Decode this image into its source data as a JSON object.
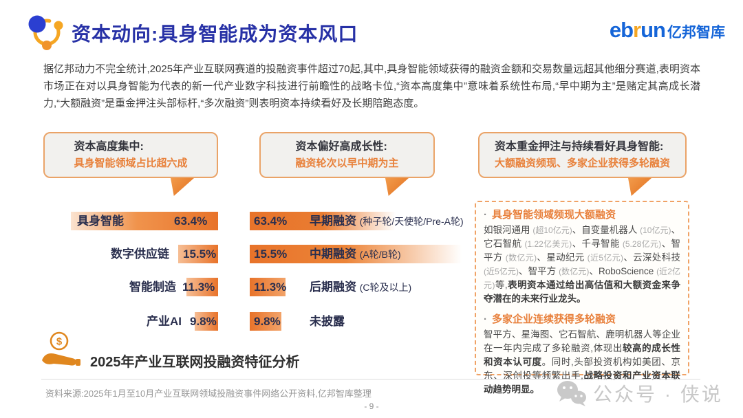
{
  "slide": {
    "title": "资本动向:具身智能成为资本风口",
    "brand": {
      "eb": "eb",
      "r": "r",
      "un": "un",
      "cn": "亿邦智库"
    },
    "intro": "据亿邦动力不完全统计,2025年产业互联网赛道的投融资事件超过70起,其中,具身智能领域获得的融资金额和交易数量远超其他细分赛道,表明资本市场正在对以具身智能为代表的新一代产业数字科技进行前瞻性的战略卡位,“资本高度集中”意味着系统性布局,“早中期为主”是赌定其高成长潜力,“大额融资”是重金押注头部标杆,“多次融资”则表明资本持续看好及长期陪跑态度。",
    "feature_title": "2025年产业互联网投融资特征分析",
    "footnote": "资料来源:2025年1月至10月产业互联网领域投融资事件网络公开资料,亿邦智库整理",
    "page_number": "- 9 -",
    "watermark": "公众号 · 侠说"
  },
  "callouts": [
    {
      "title": "资本高度集中:",
      "subtitle": "具身智能领域占比超六成"
    },
    {
      "title": "资本偏好高成长性:",
      "subtitle": "融资轮次以早中期为主"
    },
    {
      "title": "资本重金押注与持续看好具身智能:",
      "subtitle": "大额融资频现、多家企业获得多轮融资"
    }
  ],
  "chart_data": [
    {
      "type": "bar",
      "orientation": "horizontal",
      "title": "资本高度集中:具身智能领域占比超六成",
      "categories": [
        "具身智能",
        "数字供应链",
        "智能制造",
        "产业AI"
      ],
      "values": [
        63.4,
        15.5,
        11.3,
        9.8
      ],
      "labels": [
        "63.4%",
        "15.5%",
        "11.3%",
        "9.8%"
      ],
      "unit": "%",
      "xlim": [
        0,
        70
      ],
      "grid": false,
      "legend": false
    },
    {
      "type": "bar",
      "orientation": "horizontal",
      "title": "资本偏好高成长性:融资轮次以早中期为主",
      "categories": [
        "早期融资",
        "中期融资",
        "后期融资",
        "未披露"
      ],
      "category_details": [
        "(种子轮/天使轮/Pre-A轮)",
        "(A轮/B轮)",
        "(C轮及以上)",
        ""
      ],
      "values": [
        63.4,
        15.5,
        11.3,
        9.8
      ],
      "labels": [
        "63.4%",
        "15.5%",
        "11.3%",
        "9.8%"
      ],
      "unit": "%",
      "xlim": [
        0,
        70
      ],
      "grid": false,
      "legend": false
    }
  ],
  "insight_panel": {
    "bullets": [
      {
        "heading": "具身智能领域频现大额融资",
        "runs": [
          {
            "s": "n",
            "t": "如银河通用 "
          },
          {
            "s": "g",
            "t": "(超10亿元)"
          },
          {
            "s": "n",
            "t": "、自变量机器人 "
          },
          {
            "s": "g",
            "t": "(10亿元)"
          },
          {
            "s": "n",
            "t": "、它石智航 "
          },
          {
            "s": "g",
            "t": "(1.22亿美元)"
          },
          {
            "s": "n",
            "t": "、千寻智能 "
          },
          {
            "s": "g",
            "t": "(5.28亿元)"
          },
          {
            "s": "n",
            "t": "、智平方 "
          },
          {
            "s": "g",
            "t": "(数亿元)"
          },
          {
            "s": "n",
            "t": "、星动纪元 "
          },
          {
            "s": "g",
            "t": "(近5亿元)"
          },
          {
            "s": "n",
            "t": "、云深处科技 "
          },
          {
            "s": "g",
            "t": "(近5亿元)"
          },
          {
            "s": "n",
            "t": "、智平方 "
          },
          {
            "s": "g",
            "t": "(数亿元)"
          },
          {
            "s": "n",
            "t": "、RoboScience "
          },
          {
            "s": "g",
            "t": "(近2亿元)"
          },
          {
            "s": "n",
            "t": "等,"
          },
          {
            "s": "b",
            "t": "表明资本通过给出高估值和大额资金来争夺潜在的未来行业龙头。"
          }
        ]
      },
      {
        "heading": "多家企业连续获得多轮融资",
        "runs": [
          {
            "s": "n",
            "t": "智平方、星海图、它石智航、鹿明机器人等企业在一年内完成了多轮融资,体现出"
          },
          {
            "s": "b",
            "t": "较高的成长性和资本认可度"
          },
          {
            "s": "n",
            "t": "。同时,头部投资机构如美团、京东、深创投等频繁出手,"
          },
          {
            "s": "b",
            "t": "战略投资和产业资本联动趋势明显。"
          }
        ]
      }
    ]
  },
  "colors": {
    "accent_orange": "#E8732A",
    "title_blue": "#2731A6",
    "logo_blue": "#1565D8",
    "logo_orange": "#F5A623",
    "chart_text": "#2A2F4E",
    "callout_border": "#EAA367",
    "panel_border": "#F0A265"
  }
}
